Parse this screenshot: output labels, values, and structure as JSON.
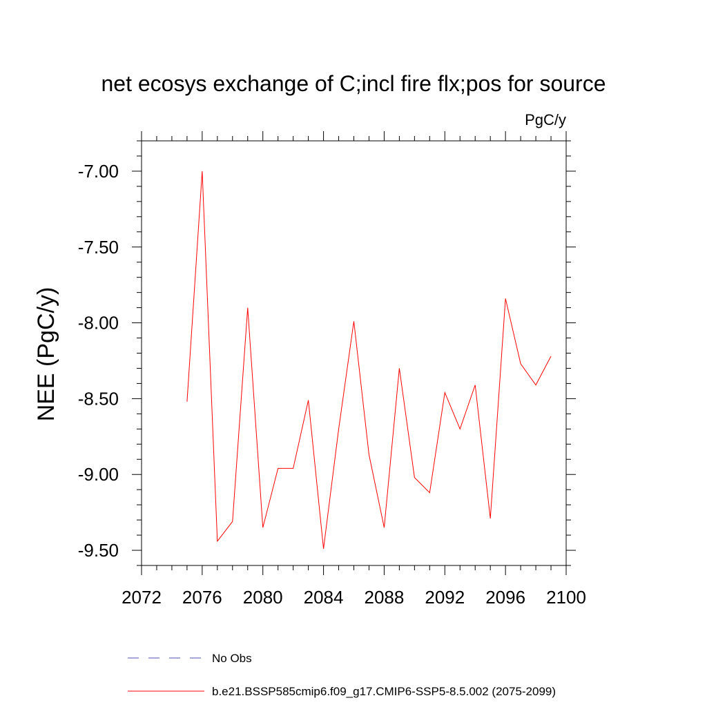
{
  "chart_data": {
    "type": "line",
    "title": "net ecosys exchange of C;incl fire flx;pos for source",
    "units": "PgC/y",
    "xlabel": "",
    "ylabel": "NEE  (PgC/y)",
    "xlim": [
      2072,
      2100
    ],
    "ylim": [
      -9.6,
      -6.8
    ],
    "x_ticks": [
      2072,
      2076,
      2080,
      2084,
      2088,
      2092,
      2096,
      2100
    ],
    "x_tick_labels": [
      "2072",
      "2076",
      "2080",
      "2084",
      "2088",
      "2092",
      "2096",
      "2100"
    ],
    "y_ticks": [
      -7.0,
      -7.5,
      -8.0,
      -8.5,
      -9.0,
      -9.5
    ],
    "y_tick_labels": [
      "-7.00",
      "-7.50",
      "-8.00",
      "-8.50",
      "-9.00",
      "-9.50"
    ],
    "grid": false,
    "legend_position": "bottom",
    "series": [
      {
        "name": "b.e21.BSSP585cmip6.f09_g17.CMIP6-SSP5-8.5.002 (2075-2099)",
        "color": "#ff0000",
        "style": "solid",
        "x": [
          2075,
          2076,
          2077,
          2078,
          2079,
          2080,
          2081,
          2082,
          2083,
          2084,
          2085,
          2086,
          2087,
          2088,
          2089,
          2090,
          2091,
          2092,
          2093,
          2094,
          2095,
          2096,
          2097,
          2098,
          2099
        ],
        "y": [
          -8.52,
          -7.0,
          -9.44,
          -9.31,
          -7.9,
          -9.35,
          -8.96,
          -8.96,
          -8.51,
          -9.49,
          -8.7,
          -7.99,
          -8.87,
          -9.35,
          -8.3,
          -9.02,
          -9.12,
          -8.46,
          -8.7,
          -8.41,
          -9.29,
          -7.84,
          -8.27,
          -8.41,
          -8.22
        ]
      },
      {
        "name": "No Obs",
        "color": "#4b4baf",
        "style": "dashed",
        "x": [],
        "y": []
      }
    ]
  }
}
